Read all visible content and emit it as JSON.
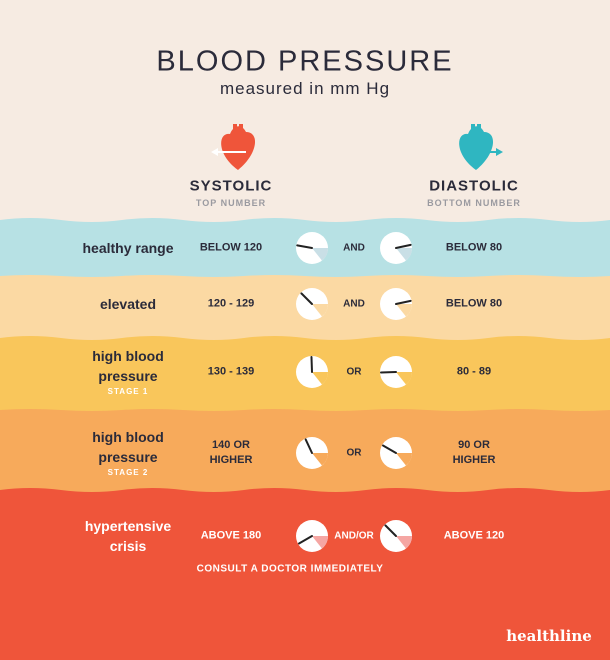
{
  "header": {
    "title": "BLOOD PRESSURE",
    "subtitle": "measured in mm Hg"
  },
  "columns": [
    {
      "label": "SYSTOLIC",
      "sublabel": "TOP NUMBER"
    },
    {
      "label": "DIASTOLIC",
      "sublabel": "BOTTOM NUMBER"
    }
  ],
  "rows": [
    {
      "category": "healthy range",
      "systolic": "BELOW 120",
      "connector": "AND",
      "diastolic": "BELOW 80"
    },
    {
      "category": "elevated",
      "systolic": "120 - 129",
      "connector": "AND",
      "diastolic": "BELOW 80"
    },
    {
      "category": "high blood pressure",
      "stage": "STAGE 1",
      "systolic": "130 - 139",
      "connector": "OR",
      "diastolic": "80 - 89"
    },
    {
      "category": "high blood pressure",
      "stage": "STAGE 2",
      "systolic": "140 OR HIGHER",
      "connector": "OR",
      "diastolic": "90 OR HIGHER"
    },
    {
      "category": "hypertensive crisis",
      "systolic": "ABOVE 180",
      "connector": "AND/OR",
      "diastolic": "ABOVE 120",
      "note": "CONSULT A DOCTOR IMMEDIATELY"
    }
  ],
  "brand": "healthline"
}
